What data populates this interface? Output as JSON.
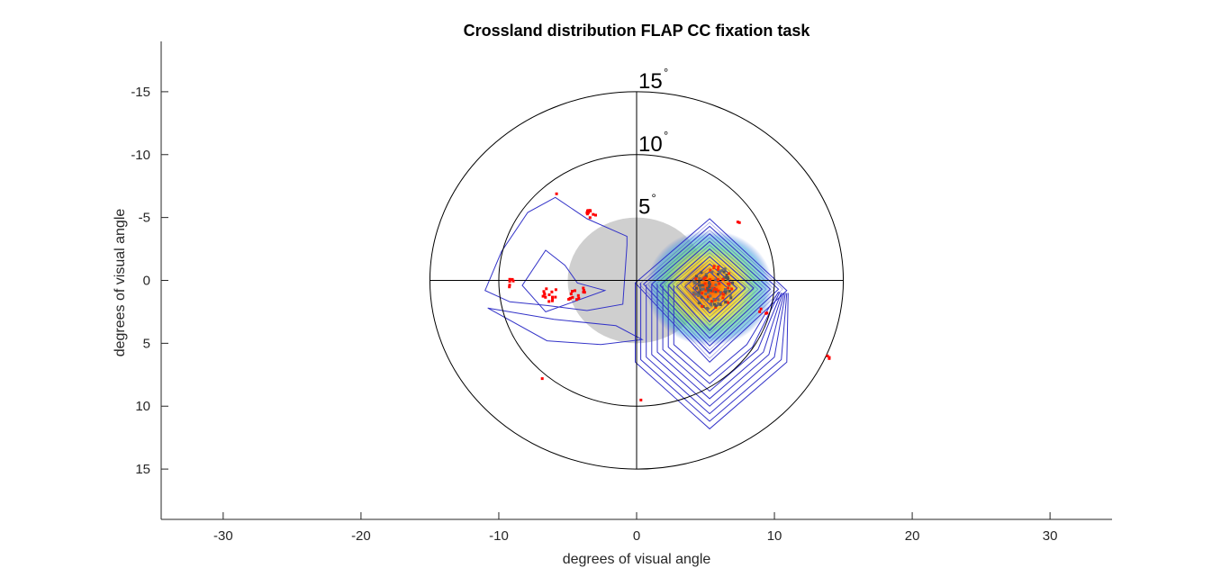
{
  "chart_data": {
    "type": "scatter",
    "title": "Crossland distribution FLAP CC fixation task",
    "xlabel": "degrees of visual angle",
    "ylabel": "degrees of visual angle",
    "xlim": [
      -34.5,
      34.5
    ],
    "ylim": [
      19,
      -19
    ],
    "y_reversed": true,
    "xticks": [
      -30,
      -20,
      -10,
      0,
      10,
      20,
      30
    ],
    "yticks": [
      -15,
      -10,
      -5,
      0,
      5,
      10,
      15
    ],
    "grid": false,
    "rings": [
      {
        "radius": 15,
        "label": "15",
        "unit": "°"
      },
      {
        "radius": 10,
        "label": "10",
        "unit": "°"
      },
      {
        "radius": 5,
        "label": "5",
        "unit": "°"
      }
    ],
    "scotoma": {
      "center": [
        0,
        0
      ],
      "radius": 5,
      "color": "#cfcfcf"
    },
    "crosshair_extent": 15,
    "density_peak": {
      "x": 5.3,
      "y": 0.6
    },
    "contour_color": "#3333c8",
    "main_contours": [
      [
        [
          5.3,
          -4.9
        ],
        [
          10.9,
          0.8
        ],
        [
          5.3,
          6.5
        ],
        [
          -0.1,
          0.2
        ]
      ],
      [
        [
          5.3,
          -4.3
        ],
        [
          10.3,
          0.7
        ],
        [
          5.3,
          5.8
        ],
        [
          0.5,
          0.3
        ]
      ],
      [
        [
          5.3,
          -3.7
        ],
        [
          9.7,
          0.7
        ],
        [
          5.3,
          5.2
        ],
        [
          1.1,
          0.3
        ]
      ],
      [
        [
          5.3,
          -3.1
        ],
        [
          9.1,
          0.7
        ],
        [
          5.3,
          4.6
        ],
        [
          1.7,
          0.4
        ]
      ],
      [
        [
          5.3,
          -2.5
        ],
        [
          8.5,
          0.6
        ],
        [
          5.3,
          4.0
        ],
        [
          2.3,
          0.4
        ]
      ],
      [
        [
          5.3,
          -1.9
        ],
        [
          7.9,
          0.6
        ],
        [
          5.3,
          3.3
        ],
        [
          2.9,
          0.5
        ]
      ],
      [
        [
          5.3,
          -1.3
        ],
        [
          7.3,
          0.6
        ],
        [
          5.3,
          2.6
        ],
        [
          3.5,
          0.5
        ]
      ],
      [
        [
          5.3,
          -0.7
        ],
        [
          6.6,
          0.6
        ],
        [
          5.3,
          1.9
        ],
        [
          4.1,
          0.6
        ]
      ]
    ],
    "outer_contours": [
      [
        [
          -0.1,
          0.2
        ],
        [
          -0.1,
          6.5
        ],
        [
          5.3,
          11.8
        ],
        [
          10.9,
          6.5
        ],
        [
          11.0,
          1.0
        ]
      ],
      [
        [
          0.3,
          0.2
        ],
        [
          0.3,
          6.3
        ],
        [
          5.3,
          11.2
        ],
        [
          10.5,
          6.3
        ],
        [
          10.9,
          1.0
        ]
      ],
      [
        [
          0.7,
          0.3
        ],
        [
          0.7,
          6.1
        ],
        [
          5.3,
          10.6
        ],
        [
          10.0,
          6.1
        ],
        [
          10.8,
          1.0
        ]
      ],
      [
        [
          1.1,
          0.3
        ],
        [
          1.1,
          5.9
        ],
        [
          5.3,
          10.0
        ],
        [
          9.6,
          5.9
        ],
        [
          10.7,
          1.0
        ]
      ],
      [
        [
          1.5,
          0.3
        ],
        [
          1.5,
          5.7
        ],
        [
          5.3,
          9.4
        ],
        [
          9.2,
          5.7
        ],
        [
          10.6,
          1.0
        ]
      ],
      [
        [
          1.9,
          0.4
        ],
        [
          1.9,
          5.5
        ],
        [
          5.3,
          8.8
        ],
        [
          8.8,
          5.5
        ],
        [
          10.5,
          1.0
        ]
      ],
      [
        [
          2.3,
          0.4
        ],
        [
          2.3,
          5.3
        ],
        [
          5.3,
          8.2
        ],
        [
          8.4,
          5.3
        ],
        [
          10.4,
          0.9
        ]
      ],
      [
        [
          2.7,
          0.4
        ],
        [
          2.7,
          5.1
        ],
        [
          5.3,
          7.6
        ],
        [
          8.0,
          5.1
        ],
        [
          10.3,
          0.9
        ]
      ]
    ],
    "left_contours": [
      [
        [
          -5.9,
          -6.6
        ],
        [
          -3.6,
          -4.9
        ],
        [
          -0.7,
          -3.5
        ],
        [
          -0.7,
          -2.8
        ],
        [
          -1.0,
          1.9
        ],
        [
          -3.6,
          2.4
        ],
        [
          -6.5,
          2.0
        ],
        [
          -9.2,
          1.7
        ],
        [
          -11.0,
          0.8
        ],
        [
          -9.8,
          -2.3
        ],
        [
          -7.9,
          -5.4
        ]
      ],
      [
        [
          -6.6,
          -2.4
        ],
        [
          -5.2,
          -1.2
        ],
        [
          -4.3,
          0.2
        ],
        [
          -2.3,
          0.8
        ],
        [
          -6.6,
          2.5
        ],
        [
          -8.3,
          0.4
        ]
      ],
      [
        [
          -6.0,
          3.1
        ],
        [
          -1.5,
          3.6
        ],
        [
          0.4,
          4.7
        ],
        [
          -2.6,
          5.1
        ],
        [
          -6.5,
          4.8
        ],
        [
          -10.8,
          2.2
        ]
      ]
    ],
    "fixation_clusters": [
      {
        "x": -3.3,
        "y": -5.4,
        "n": 10,
        "spread": 0.4
      },
      {
        "x": -6.4,
        "y": 1.0,
        "n": 14,
        "spread": 0.6
      },
      {
        "x": -4.5,
        "y": 1.3,
        "n": 10,
        "spread": 0.5
      },
      {
        "x": -9.2,
        "y": 0.2,
        "n": 6,
        "spread": 0.3
      },
      {
        "x": -3.8,
        "y": 0.8,
        "n": 4,
        "spread": 0.2
      },
      {
        "x": -5.8,
        "y": -7.0,
        "n": 1,
        "spread": 0.1
      },
      {
        "x": 7.4,
        "y": -4.6,
        "n": 2,
        "spread": 0.1
      },
      {
        "x": 9.2,
        "y": 2.4,
        "n": 4,
        "spread": 0.3
      },
      {
        "x": 13.9,
        "y": 6.2,
        "n": 3,
        "spread": 0.2
      },
      {
        "x": -6.8,
        "y": 7.9,
        "n": 1,
        "spread": 0.1
      },
      {
        "x": 0.3,
        "y": 9.4,
        "n": 1,
        "spread": 0.1
      },
      {
        "x": 5.6,
        "y": 0.6,
        "n": 120,
        "spread": 1.5
      }
    ]
  }
}
